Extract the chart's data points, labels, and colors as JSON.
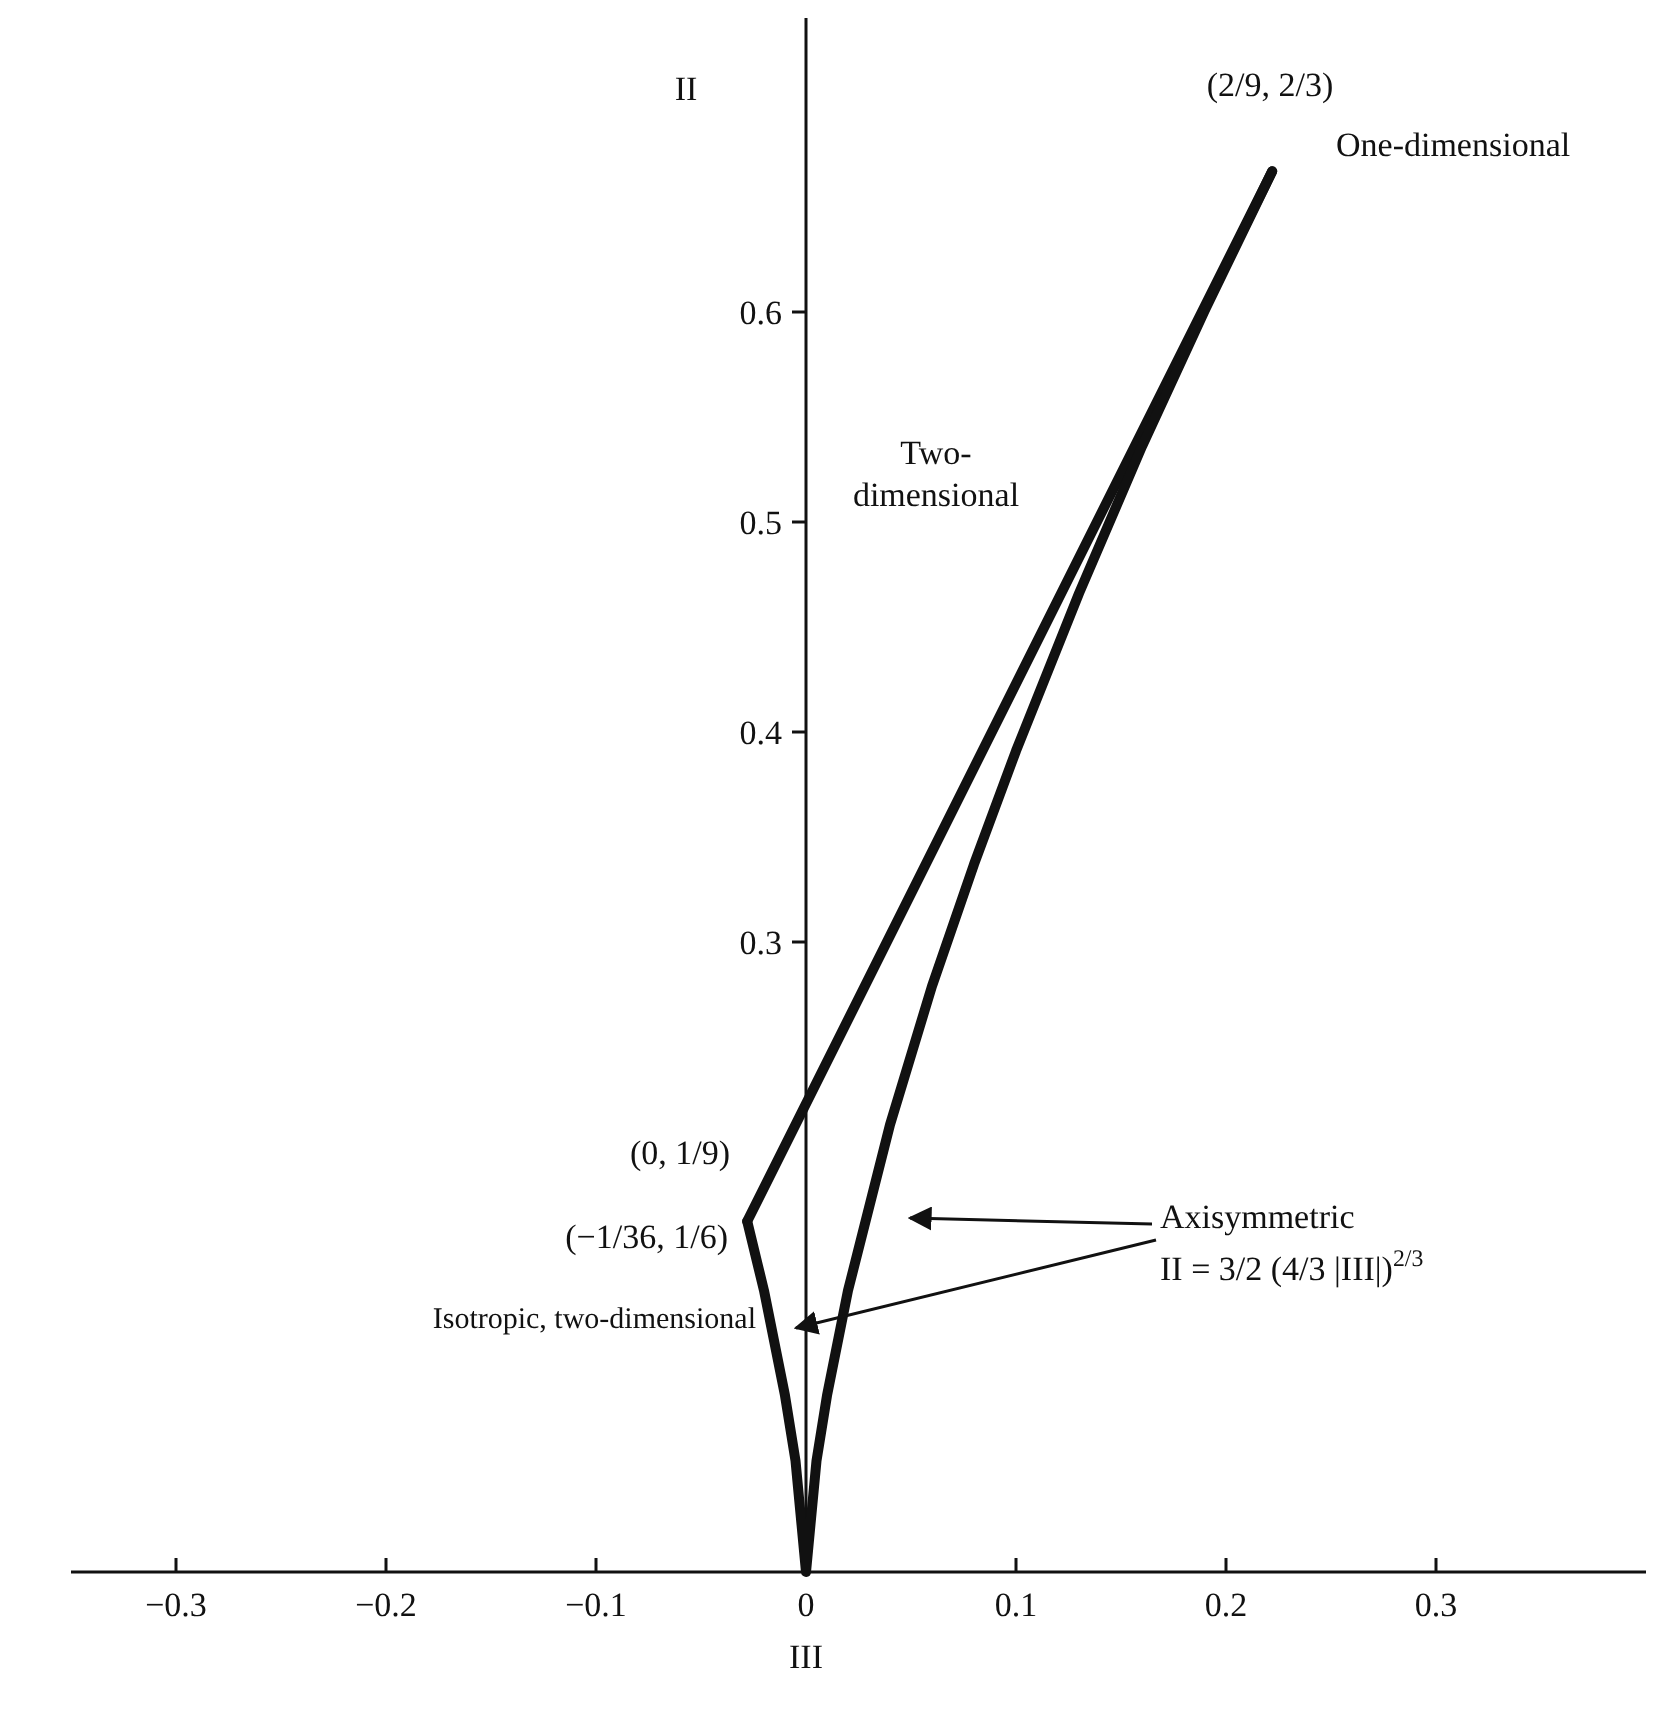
{
  "chart_data": {
    "type": "line",
    "xlabel": "III",
    "ylabel": "II",
    "xlim": [
      -0.35,
      0.4
    ],
    "ylim": [
      0,
      0.74
    ],
    "xticks": [
      {
        "value": -0.3,
        "label": "−0.3"
      },
      {
        "value": -0.2,
        "label": "−0.2"
      },
      {
        "value": -0.1,
        "label": "−0.1"
      },
      0,
      0.1,
      0.2,
      0.3
    ],
    "yticks": [
      0.3,
      0.4,
      0.5,
      0.6
    ],
    "grid": false,
    "marker": "none",
    "line_style": "solid",
    "series": [
      {
        "color": "#111111",
        "x": [
          -0.028,
          0.222
        ],
        "values": [
          0.167,
          0.667
        ]
      },
      {
        "color": "#111111",
        "x": [
          -0.028,
          -0.02,
          -0.01,
          -0.005,
          0,
          0.005,
          0.01,
          0.02,
          0.04,
          0.06,
          0.08,
          0.1,
          0.13,
          0.16,
          0.19,
          0.222
        ],
        "values": [
          0.167,
          0.134,
          0.084,
          0.053,
          0,
          0.053,
          0.084,
          0.134,
          0.213,
          0.279,
          0.337,
          0.391,
          0.466,
          0.536,
          0.601,
          0.667
        ]
      }
    ],
    "annotations": [
      "(2/9, 2/3)",
      "One-dimensional",
      "Two-\ndimensional",
      "(0, 1/9)",
      "(−1/36, 1/6)",
      "Isotropic, two-dimensional",
      "Axisymmetric",
      "II = 3/2 (4/3 |III|)$^{2/3}$"
    ]
  }
}
